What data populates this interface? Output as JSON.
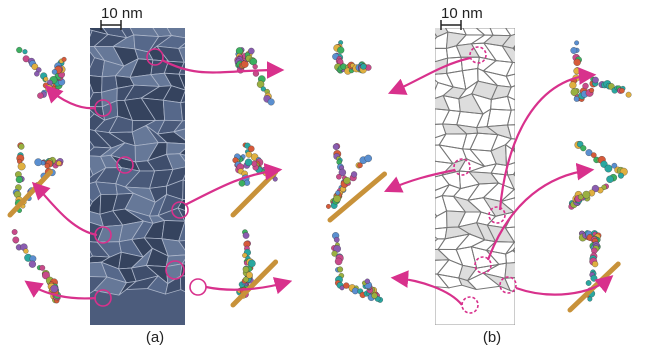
{
  "panels": [
    {
      "scale_bar": "10 nm",
      "label": "(a)"
    },
    {
      "scale_bar": "10 nm",
      "label": "(b)"
    }
  ]
}
